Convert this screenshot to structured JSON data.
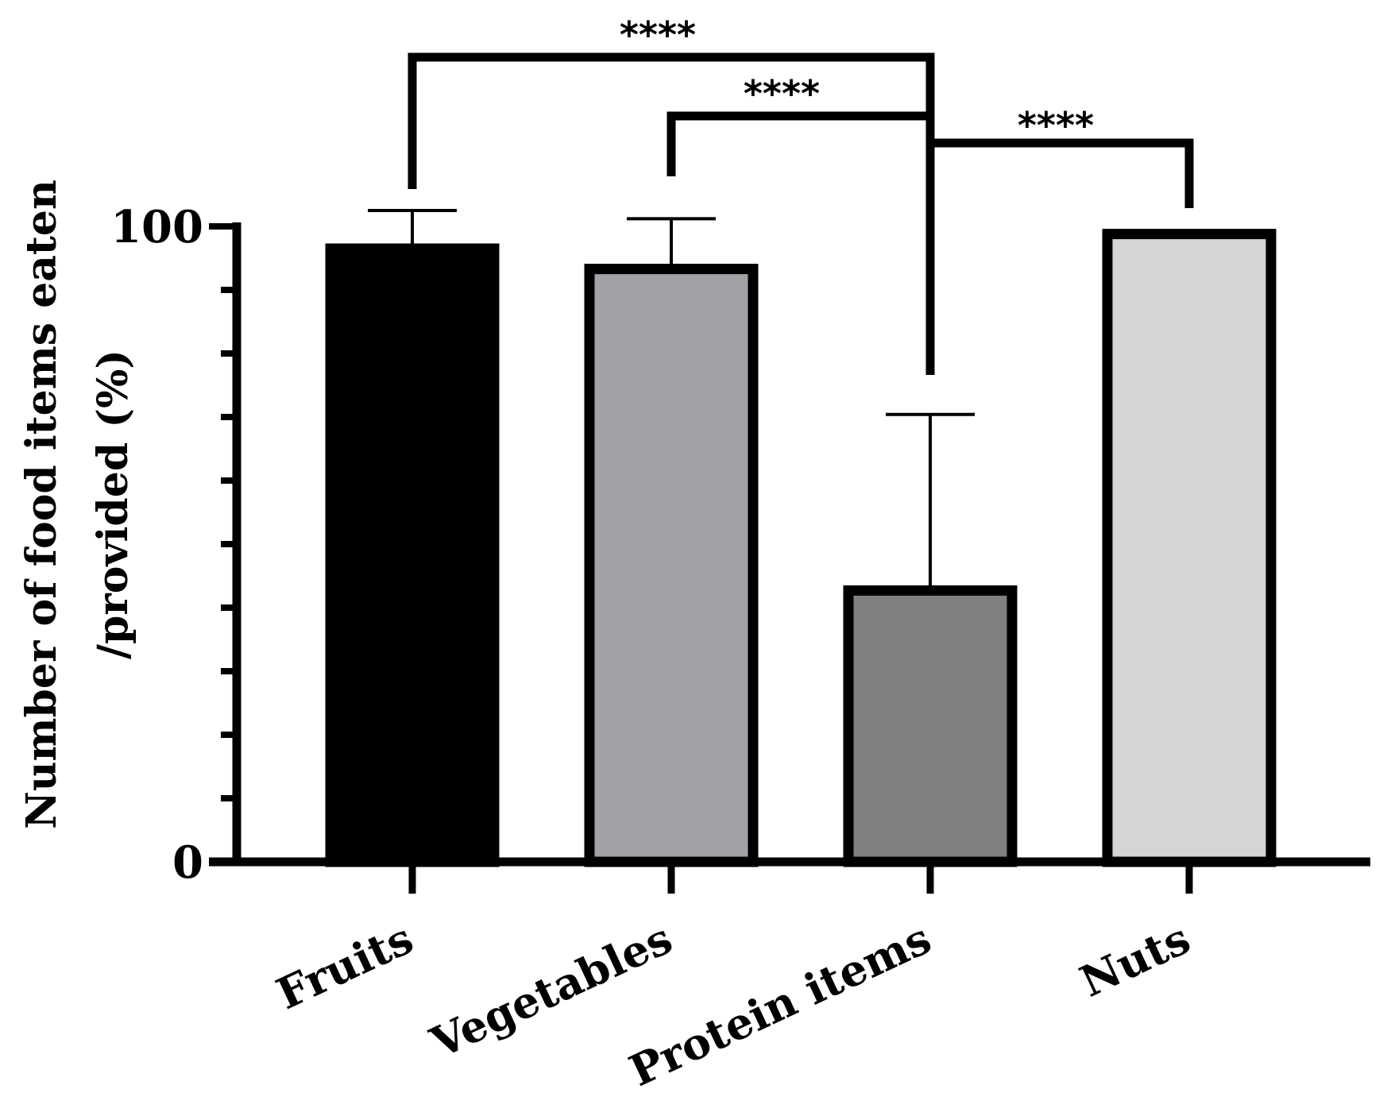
{
  "chart_data": {
    "type": "bar",
    "title": "",
    "xlabel": "",
    "ylabel_lines": [
      "Number of food items eaten",
      "/provided (%)"
    ],
    "ylim": [
      0,
      100
    ],
    "y_major_ticks": [
      0,
      100
    ],
    "y_minor_step": 10,
    "categories": [
      "Fruits",
      "Vegetables",
      "Protein items",
      "Nuts"
    ],
    "values": [
      96.5,
      93.3,
      42.7,
      98.8
    ],
    "error_upper": [
      102.5,
      101.2,
      70.4,
      98.8
    ],
    "bar_colors": [
      "#000000",
      "#a2a1a6",
      "#808080",
      "#d5d5d5"
    ],
    "bar_edge_color": "#000000",
    "significance": [
      {
        "from": "Fruits",
        "to": "Protein items",
        "label": "****"
      },
      {
        "from": "Vegetables",
        "to": "Protein items",
        "label": "****"
      },
      {
        "from": "Protein items",
        "to": "Nuts",
        "label": "****"
      }
    ]
  }
}
